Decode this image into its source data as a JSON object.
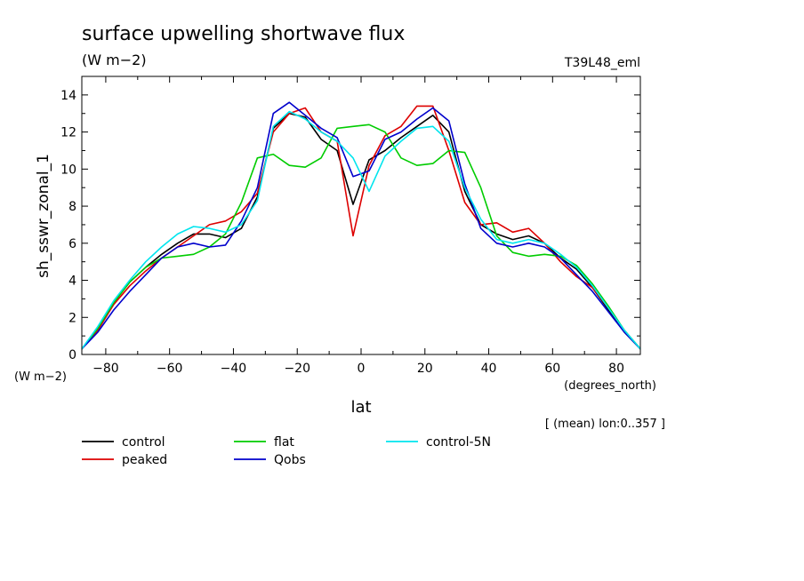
{
  "chart_data": {
    "type": "line",
    "title": "surface upwelling shortwave flux",
    "units": "(W m−2)",
    "experiment": "T39L48_eml",
    "ylabel": "sh_sswr_zonal_1",
    "y_units": "(W m−2)",
    "xlabel": "lat",
    "x_units": "(degrees_north)",
    "annotation": "[ (mean) lon:0..357 ]",
    "xlim": [
      -87.5,
      87.5
    ],
    "ylim": [
      0,
      15
    ],
    "xticks": [
      -80,
      -60,
      -40,
      -20,
      0,
      20,
      40,
      60,
      80
    ],
    "xtick_labels": [
      "−80",
      "−60",
      "−40",
      "−20",
      "0",
      "20",
      "40",
      "60",
      "80"
    ],
    "yticks": [
      0,
      2,
      4,
      6,
      8,
      10,
      12,
      14
    ],
    "ytick_labels": [
      "0",
      "2",
      "4",
      "6",
      "8",
      "10",
      "12",
      "14"
    ],
    "x": [
      -87.5,
      -82.5,
      -77.5,
      -72.5,
      -67.5,
      -62.5,
      -57.5,
      -52.5,
      -47.5,
      -42.5,
      -37.5,
      -32.5,
      -27.5,
      -22.5,
      -17.5,
      -12.5,
      -7.5,
      -2.5,
      2.5,
      7.5,
      12.5,
      17.5,
      22.5,
      27.5,
      32.5,
      37.5,
      42.5,
      47.5,
      52.5,
      57.5,
      62.5,
      67.5,
      72.5,
      77.5,
      82.5,
      87.5
    ],
    "series": [
      {
        "name": "control",
        "color": "#000000",
        "values": [
          0.3,
          1.4,
          2.8,
          3.9,
          4.7,
          5.4,
          6.0,
          6.5,
          6.5,
          6.3,
          6.8,
          8.5,
          12.2,
          13.0,
          12.8,
          11.6,
          11.0,
          8.1,
          10.5,
          11.0,
          11.7,
          12.3,
          12.9,
          12.0,
          8.8,
          7.0,
          6.5,
          6.2,
          6.4,
          6.0,
          5.2,
          4.6,
          3.6,
          2.4,
          1.2,
          0.3
        ]
      },
      {
        "name": "peaked",
        "color": "#dd0000",
        "values": [
          0.3,
          1.3,
          2.7,
          3.7,
          4.5,
          5.2,
          5.8,
          6.4,
          7.0,
          7.2,
          7.7,
          8.7,
          12.0,
          13.0,
          13.3,
          12.0,
          11.5,
          6.4,
          10.2,
          11.8,
          12.3,
          13.4,
          13.4,
          11.0,
          8.2,
          7.0,
          7.1,
          6.6,
          6.8,
          6.0,
          5.0,
          4.2,
          3.6,
          2.5,
          1.3,
          0.3
        ]
      },
      {
        "name": "flat",
        "color": "#00cc00",
        "values": [
          0.3,
          1.4,
          2.8,
          3.9,
          4.7,
          5.2,
          5.3,
          5.4,
          5.8,
          6.5,
          8.2,
          10.6,
          10.8,
          10.2,
          10.1,
          10.6,
          12.2,
          12.3,
          12.4,
          12.0,
          10.6,
          10.2,
          10.3,
          11.0,
          10.9,
          9.0,
          6.4,
          5.5,
          5.3,
          5.4,
          5.3,
          4.8,
          3.8,
          2.6,
          1.3,
          0.3
        ]
      },
      {
        "name": "Qobs",
        "color": "#0000cc",
        "values": [
          0.3,
          1.2,
          2.4,
          3.4,
          4.3,
          5.2,
          5.8,
          6.0,
          5.8,
          5.9,
          7.2,
          9.0,
          13.0,
          13.6,
          12.9,
          12.2,
          11.7,
          9.6,
          9.9,
          11.6,
          12.0,
          12.7,
          13.3,
          12.6,
          9.2,
          6.8,
          6.0,
          5.8,
          6.0,
          5.8,
          5.2,
          4.3,
          3.4,
          2.3,
          1.2,
          0.3
        ]
      },
      {
        "name": "control-5N",
        "color": "#00e5ee",
        "values": [
          0.3,
          1.5,
          2.9,
          4.0,
          5.0,
          5.8,
          6.5,
          6.9,
          6.8,
          6.6,
          7.0,
          8.3,
          12.3,
          13.1,
          12.7,
          12.0,
          11.5,
          10.6,
          8.8,
          10.7,
          11.5,
          12.2,
          12.3,
          11.5,
          9.0,
          7.3,
          6.2,
          6.0,
          6.2,
          6.0,
          5.4,
          4.7,
          3.7,
          2.5,
          1.3,
          0.3
        ]
      }
    ]
  }
}
